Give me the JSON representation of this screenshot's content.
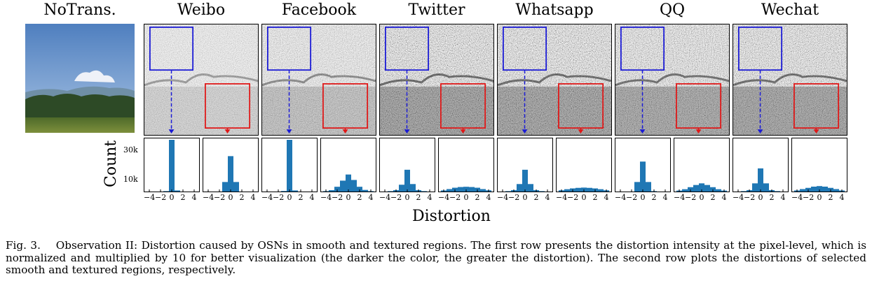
{
  "columns": [
    {
      "key": "notrans",
      "title": "NoTrans."
    },
    {
      "key": "weibo",
      "title": "Weibo"
    },
    {
      "key": "facebook",
      "title": "Facebook"
    },
    {
      "key": "twitter",
      "title": "Twitter"
    },
    {
      "key": "whatsapp",
      "title": "Whatsapp"
    },
    {
      "key": "qq",
      "title": "QQ"
    },
    {
      "key": "wechat",
      "title": "Wechat"
    }
  ],
  "colors": {
    "smooth_box": "#1a1ad6",
    "textured_box": "#e01818",
    "bars": "#1f77b4"
  },
  "y_axis_label": "Count",
  "y_ticks": [
    "30k",
    "10k"
  ],
  "x_axis_label": "Distortion",
  "x_tick_labels": [
    "−4",
    "−2",
    "0",
    "2",
    "4"
  ],
  "caption": {
    "label": "Fig. 3.",
    "text": "Observation II: Distortion caused by OSNs in smooth and textured regions. The first row presents the distortion intensity at the pixel-level, which is normalized and multiplied by 10 for better visualization (the darker the color, the greater the distortion). The second row plots the distortions of selected smooth and textured regions, respectively."
  },
  "chart_data": {
    "type": "bar",
    "bin_centers": [
      -4,
      -3,
      -2,
      -1,
      0,
      1,
      2,
      3,
      4
    ],
    "xlim": [
      -5,
      5
    ],
    "ylim": [
      0,
      38000
    ],
    "series": [
      {
        "platform": "Weibo",
        "region": "smooth",
        "values": [
          0,
          0,
          0,
          300,
          38000,
          800,
          0,
          0,
          0
        ]
      },
      {
        "platform": "Weibo",
        "region": "textured",
        "values": [
          0,
          0,
          0,
          7000,
          26000,
          7000,
          0,
          0,
          0
        ]
      },
      {
        "platform": "Facebook",
        "region": "smooth",
        "values": [
          0,
          0,
          0,
          400,
          38000,
          800,
          0,
          0,
          0
        ]
      },
      {
        "platform": "Facebook",
        "region": "textured",
        "values": [
          300,
          1000,
          3500,
          8000,
          12500,
          8500,
          3500,
          1200,
          300
        ]
      },
      {
        "platform": "Twitter",
        "region": "smooth",
        "values": [
          0,
          300,
          1000,
          5000,
          16000,
          5500,
          1000,
          300,
          0
        ]
      },
      {
        "platform": "Twitter",
        "region": "textured",
        "values": [
          800,
          1800,
          2800,
          3300,
          3500,
          3300,
          2800,
          1800,
          900
        ]
      },
      {
        "platform": "Whatsapp",
        "region": "smooth",
        "values": [
          0,
          300,
          1000,
          5500,
          16000,
          5500,
          1000,
          300,
          0
        ]
      },
      {
        "platform": "Whatsapp",
        "region": "textured",
        "values": [
          900,
          1700,
          2300,
          2700,
          2900,
          2700,
          2300,
          1700,
          900
        ]
      },
      {
        "platform": "QQ",
        "region": "smooth",
        "values": [
          0,
          0,
          0,
          7000,
          22000,
          7000,
          300,
          0,
          0
        ]
      },
      {
        "platform": "QQ",
        "region": "textured",
        "values": [
          700,
          1700,
          3200,
          4800,
          6000,
          4800,
          3200,
          1700,
          700
        ]
      },
      {
        "platform": "Wechat",
        "region": "smooth",
        "values": [
          0,
          300,
          1000,
          6000,
          17000,
          6000,
          1000,
          300,
          0
        ]
      },
      {
        "platform": "Wechat",
        "region": "textured",
        "values": [
          800,
          1800,
          2700,
          3600,
          4000,
          3600,
          2700,
          1800,
          800
        ]
      }
    ]
  }
}
